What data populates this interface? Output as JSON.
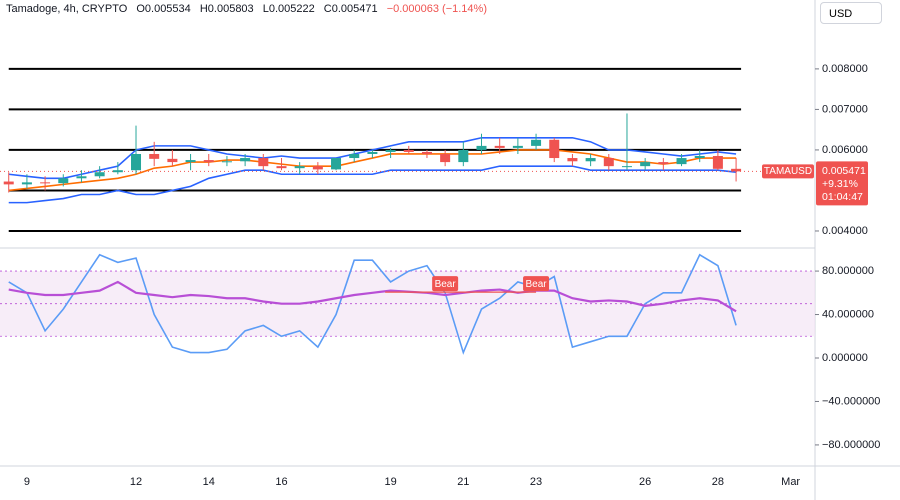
{
  "header": {
    "symbol": "Tamadoge, 4h, CRYPTO",
    "open": "O0.005534",
    "high": "H0.005803",
    "low": "L0.005222",
    "close": "C0.005471",
    "change": "−0.000063 (−1.14%)"
  },
  "currency_button": "USD",
  "price_tag": {
    "symbol": "TAMAUSD",
    "price": "0.005471",
    "change": "+9.31%",
    "countdown": "01:04:47"
  },
  "chart_data": [
    {
      "type": "candlestick",
      "x": [
        8.5,
        9,
        9.5,
        10,
        10.5,
        11,
        11.5,
        12,
        12.5,
        13,
        13.5,
        14,
        14.5,
        15,
        15.5,
        16,
        16.5,
        17,
        17.5,
        18,
        18.5,
        19,
        19.5,
        20,
        20.5,
        21,
        21.5,
        22,
        22.5,
        23,
        23.5,
        24,
        24.5,
        25,
        25.5,
        26,
        26.5,
        27,
        27.5,
        28,
        28.5
      ],
      "open": [
        0.00522,
        0.00515,
        0.0052,
        0.00518,
        0.0053,
        0.00535,
        0.00545,
        0.0055,
        0.0059,
        0.00578,
        0.0057,
        0.00575,
        0.0057,
        0.00572,
        0.0058,
        0.0056,
        0.00555,
        0.0056,
        0.00552,
        0.0058,
        0.0059,
        0.00595,
        0.006,
        0.00595,
        0.0059,
        0.0057,
        0.006,
        0.0061,
        0.00605,
        0.0061,
        0.00625,
        0.0058,
        0.00572,
        0.0058,
        0.0056,
        0.0056,
        0.0057,
        0.00565,
        0.0058,
        0.00585,
        0.005534
      ],
      "high": [
        0.00545,
        0.0054,
        0.00535,
        0.0054,
        0.0055,
        0.0056,
        0.0057,
        0.0066,
        0.0062,
        0.006,
        0.0059,
        0.0059,
        0.00585,
        0.0059,
        0.0059,
        0.0058,
        0.0057,
        0.0057,
        0.0058,
        0.006,
        0.006,
        0.00605,
        0.0061,
        0.006,
        0.006,
        0.0062,
        0.0064,
        0.0063,
        0.0063,
        0.0064,
        0.0063,
        0.0059,
        0.0059,
        0.0059,
        0.0069,
        0.0058,
        0.0058,
        0.0059,
        0.006,
        0.006,
        0.005803
      ],
      "low": [
        0.00495,
        0.00505,
        0.005,
        0.0051,
        0.0052,
        0.0053,
        0.0054,
        0.0054,
        0.0056,
        0.0056,
        0.0055,
        0.0056,
        0.0056,
        0.0056,
        0.0055,
        0.0055,
        0.0054,
        0.0054,
        0.0055,
        0.0057,
        0.0058,
        0.0058,
        0.0059,
        0.0058,
        0.0056,
        0.0056,
        0.0059,
        0.0059,
        0.0059,
        0.006,
        0.0057,
        0.0056,
        0.0056,
        0.0055,
        0.0055,
        0.0055,
        0.0055,
        0.0056,
        0.0057,
        0.0055,
        0.005222
      ],
      "close": [
        0.00515,
        0.0052,
        0.00518,
        0.0053,
        0.00535,
        0.00545,
        0.0055,
        0.0059,
        0.00578,
        0.0057,
        0.00575,
        0.0057,
        0.00572,
        0.0058,
        0.0056,
        0.00555,
        0.0056,
        0.00552,
        0.0058,
        0.0059,
        0.00595,
        0.006,
        0.00595,
        0.0059,
        0.0057,
        0.006,
        0.0061,
        0.00605,
        0.0061,
        0.00625,
        0.0058,
        0.00572,
        0.0058,
        0.0056,
        0.0056,
        0.0057,
        0.00565,
        0.0058,
        0.00585,
        0.005534,
        0.005471
      ],
      "up_color": "#26a69a",
      "down_color": "#ef5350",
      "series": [
        {
          "color": "#2962ff",
          "values": [
            0.0054,
            0.00535,
            0.0053,
            0.0053,
            0.0054,
            0.0055,
            0.0056,
            0.006,
            0.0061,
            0.0061,
            0.0061,
            0.006,
            0.0059,
            0.00585,
            0.0058,
            0.00585,
            0.0058,
            0.0058,
            0.0058,
            0.0059,
            0.006,
            0.0061,
            0.0062,
            0.0062,
            0.0062,
            0.0062,
            0.0063,
            0.0063,
            0.0063,
            0.0063,
            0.0063,
            0.0063,
            0.0062,
            0.006,
            0.006,
            0.00595,
            0.0059,
            0.00585,
            0.0059,
            0.00595,
            0.0059
          ]
        },
        {
          "color": "#ff6d00",
          "values": [
            0.005,
            0.00505,
            0.0051,
            0.00515,
            0.0052,
            0.00525,
            0.0053,
            0.0054,
            0.00555,
            0.0056,
            0.0057,
            0.0057,
            0.00575,
            0.00575,
            0.0057,
            0.00565,
            0.0056,
            0.0056,
            0.0056,
            0.0057,
            0.0058,
            0.0059,
            0.0059,
            0.0059,
            0.0059,
            0.0059,
            0.0059,
            0.00595,
            0.006,
            0.006,
            0.006,
            0.00595,
            0.0059,
            0.0058,
            0.0057,
            0.0057,
            0.00565,
            0.0057,
            0.0058,
            0.0058,
            0.0058
          ]
        },
        {
          "color": "#2962ff",
          "values": [
            0.0047,
            0.0047,
            0.00475,
            0.0048,
            0.0049,
            0.0049,
            0.005,
            0.0049,
            0.0049,
            0.005,
            0.0051,
            0.0053,
            0.0054,
            0.0055,
            0.0055,
            0.0054,
            0.0054,
            0.0054,
            0.0054,
            0.0054,
            0.0054,
            0.0055,
            0.0055,
            0.0055,
            0.0055,
            0.0055,
            0.0055,
            0.0056,
            0.0056,
            0.0056,
            0.0056,
            0.0056,
            0.0055,
            0.0055,
            0.0055,
            0.0055,
            0.0055,
            0.0055,
            0.0055,
            0.0055,
            0.00545
          ]
        }
      ],
      "levels": [
        0.008,
        0.007,
        0.006,
        0.005,
        0.004
      ],
      "level_color": "#000000",
      "xlim": [
        8.26,
        30.67
      ],
      "xticks": [
        9,
        12,
        14,
        16,
        19,
        21,
        23,
        26,
        28,
        {
          "value": 30,
          "label": "Mar"
        }
      ],
      "ylim": [
        0.00358,
        0.0097
      ],
      "yticks": [
        {
          "value": 0.008,
          "label": "0.008000"
        },
        {
          "value": 0.007,
          "label": "0.007000"
        },
        {
          "value": 0.006,
          "label": "0.006000"
        },
        {
          "value": 0.004,
          "label": "0.004000"
        }
      ]
    },
    {
      "type": "line",
      "series": [
        {
          "color": "#5b9cf6",
          "values": [
            70,
            60,
            25,
            45,
            70,
            95,
            88,
            92,
            40,
            10,
            5,
            5,
            8,
            25,
            30,
            20,
            25,
            10,
            40,
            90,
            90,
            70,
            80,
            85,
            60,
            5,
            45,
            55,
            70,
            65,
            75,
            10,
            15,
            20,
            20,
            50,
            60,
            60,
            95,
            85,
            30
          ]
        },
        {
          "color": "#b84fd6",
          "values": [
            63,
            60,
            58,
            58,
            60,
            62,
            70,
            60,
            58,
            56,
            58,
            57,
            55,
            55,
            52,
            50,
            50,
            52,
            55,
            58,
            60,
            62,
            61,
            60,
            58,
            60,
            62,
            63,
            60,
            62,
            62,
            55,
            52,
            53,
            52,
            48,
            50,
            53,
            55,
            53,
            43
          ]
        }
      ],
      "band": [
        20,
        80
      ],
      "midline": 50,
      "band_color": "#f3e5f5",
      "annotations": [
        {
          "text": "Bear",
          "x": 20.5,
          "y": 68
        },
        {
          "text": "Bear",
          "x": 23,
          "y": 68
        }
      ],
      "ylim": [
        -99.4,
        99.4
      ],
      "yticks": [
        {
          "value": 80,
          "label": "80.000000"
        },
        {
          "value": 40,
          "label": "40.000000"
        },
        {
          "value": 0,
          "label": "0.000000"
        },
        {
          "value": -40,
          "label": "−40.000000"
        },
        {
          "value": -80,
          "label": "−80.000000"
        }
      ]
    }
  ]
}
